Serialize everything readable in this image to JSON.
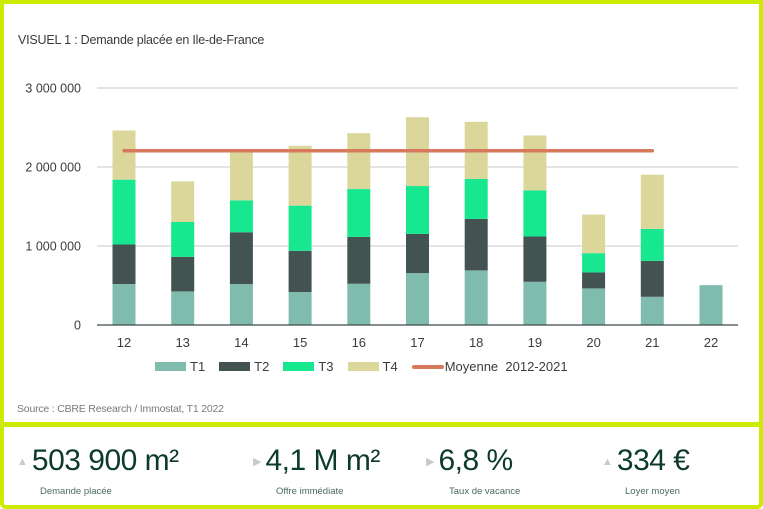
{
  "chart_data": {
    "type": "bar",
    "stacked": true,
    "title": "VISUEL 1 : Demande placée en Ile-de-France",
    "source": "Source : CBRE Research / Immostat, T1 2022",
    "xlabel": "",
    "ylabel": "",
    "ylim": [
      0,
      3000000
    ],
    "yticks": [
      0,
      1000000,
      2000000,
      3000000
    ],
    "ytick_labels": [
      "0",
      "1 000 000",
      "2 000 000",
      "3 000 000"
    ],
    "grid": true,
    "categories": [
      "12",
      "13",
      "14",
      "15",
      "16",
      "17",
      "18",
      "19",
      "20",
      "21",
      "22"
    ],
    "series": [
      {
        "name": "T1",
        "color": "#80bcad",
        "values": [
          518000,
          425000,
          518000,
          417000,
          522000,
          657000,
          691000,
          547000,
          463000,
          357000,
          503900
        ]
      },
      {
        "name": "T2",
        "color": "#435352",
        "values": [
          501000,
          437000,
          656000,
          522000,
          593000,
          496000,
          652000,
          573000,
          202000,
          455000,
          0
        ]
      },
      {
        "name": "T3",
        "color": "#17e88f",
        "values": [
          821000,
          442000,
          404000,
          572000,
          606000,
          606000,
          505000,
          585000,
          244000,
          404000,
          0
        ]
      },
      {
        "name": "T4",
        "color": "#dbd79b",
        "values": [
          622000,
          514000,
          611000,
          757000,
          707000,
          871000,
          724000,
          694000,
          489000,
          687000,
          0
        ]
      }
    ],
    "reference_line": {
      "name": "Moyenne  2012-2021",
      "color": "#d7795c",
      "value": 2205000,
      "from": "12",
      "to": "21"
    },
    "legend_position": "bottom"
  },
  "kpis": [
    {
      "arrow": "▲",
      "arrow_icon": "triangle-up-icon",
      "value": "503 900 m²",
      "label": "Demande placée"
    },
    {
      "arrow": "▶",
      "arrow_icon": "triangle-right-icon",
      "value": "4,1 M m²",
      "label": "Offre immédiate"
    },
    {
      "arrow": "▶",
      "arrow_icon": "triangle-right-icon",
      "value": "6,8 %",
      "label": "Taux de vacance"
    },
    {
      "arrow": "▲",
      "arrow_icon": "triangle-up-icon",
      "value": "334 €",
      "label": "Loyer moyen"
    }
  ],
  "colors": {
    "frame": "#cdeb00",
    "kpi_value": "#0c3b2c"
  }
}
